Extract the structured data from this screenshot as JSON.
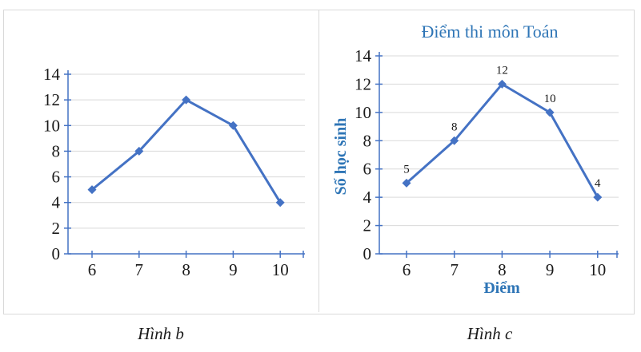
{
  "colors": {
    "line": "#4472C4",
    "axis": "#4472C4",
    "grid": "#D9D9D9",
    "blue_text": "#2E75B6",
    "tick_text": "#1A1A1A",
    "data_label_text": "#1A1A1A",
    "border": "#D9D9D9",
    "background": "#FFFFFF"
  },
  "chart_data": [
    {
      "type": "line",
      "categories": [
        6,
        7,
        8,
        9,
        10
      ],
      "values": [
        5,
        8,
        12,
        10,
        4
      ],
      "title": "",
      "xlabel": "",
      "ylabel": "",
      "ylim": [
        0,
        14
      ],
      "ytick_step": 2,
      "yticks": [
        0,
        2,
        4,
        6,
        8,
        10,
        12,
        14
      ],
      "grid": "horizontal",
      "legend": "none",
      "data_labels": false,
      "marker": "diamond",
      "caption": "Hình b"
    },
    {
      "type": "line",
      "categories": [
        6,
        7,
        8,
        9,
        10
      ],
      "values": [
        5,
        8,
        12,
        10,
        4
      ],
      "title": "Điểm thi môn Toán",
      "xlabel": "Điểm",
      "ylabel": "Số học sinh",
      "ylim": [
        0,
        14
      ],
      "ytick_step": 2,
      "yticks": [
        0,
        2,
        4,
        6,
        8,
        10,
        12,
        14
      ],
      "grid": "horizontal",
      "legend": "none",
      "data_labels": true,
      "data_label_values": [
        5,
        8,
        12,
        10,
        4
      ],
      "marker": "diamond",
      "caption": "Hình c"
    }
  ]
}
